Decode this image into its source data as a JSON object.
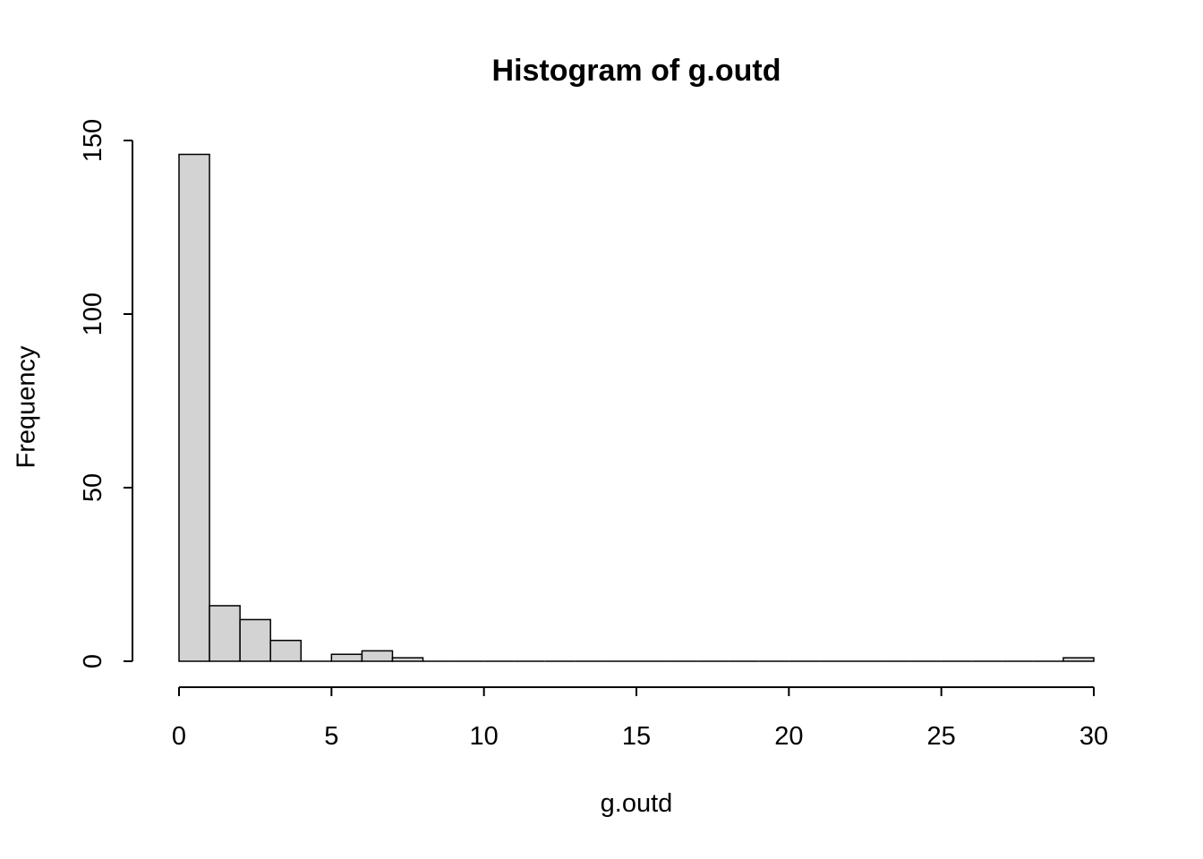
{
  "chart_data": {
    "type": "bar",
    "subtype": "histogram",
    "title": "Histogram of g.outd",
    "xlabel": "g.outd",
    "ylabel": "Frequency",
    "xlim": [
      0,
      30
    ],
    "ylim": [
      0,
      150
    ],
    "x_ticks": [
      0,
      5,
      10,
      15,
      20,
      25,
      30
    ],
    "y_ticks": [
      0,
      50,
      100,
      150
    ],
    "grid": false,
    "legend": false,
    "bar_fill": "#d3d3d3",
    "bar_stroke": "#000000",
    "bins": [
      {
        "start": 0,
        "end": 1,
        "count": 146
      },
      {
        "start": 1,
        "end": 2,
        "count": 16
      },
      {
        "start": 2,
        "end": 3,
        "count": 12
      },
      {
        "start": 3,
        "end": 4,
        "count": 6
      },
      {
        "start": 4,
        "end": 5,
        "count": 0
      },
      {
        "start": 5,
        "end": 6,
        "count": 2
      },
      {
        "start": 6,
        "end": 7,
        "count": 3
      },
      {
        "start": 7,
        "end": 8,
        "count": 1
      },
      {
        "start": 8,
        "end": 9,
        "count": 0
      },
      {
        "start": 9,
        "end": 10,
        "count": 0
      },
      {
        "start": 10,
        "end": 11,
        "count": 0
      },
      {
        "start": 11,
        "end": 12,
        "count": 0
      },
      {
        "start": 12,
        "end": 13,
        "count": 0
      },
      {
        "start": 13,
        "end": 14,
        "count": 0
      },
      {
        "start": 14,
        "end": 15,
        "count": 0
      },
      {
        "start": 15,
        "end": 16,
        "count": 0
      },
      {
        "start": 16,
        "end": 17,
        "count": 0
      },
      {
        "start": 17,
        "end": 18,
        "count": 0
      },
      {
        "start": 18,
        "end": 19,
        "count": 0
      },
      {
        "start": 19,
        "end": 20,
        "count": 0
      },
      {
        "start": 20,
        "end": 21,
        "count": 0
      },
      {
        "start": 21,
        "end": 22,
        "count": 0
      },
      {
        "start": 22,
        "end": 23,
        "count": 0
      },
      {
        "start": 23,
        "end": 24,
        "count": 0
      },
      {
        "start": 24,
        "end": 25,
        "count": 0
      },
      {
        "start": 25,
        "end": 26,
        "count": 0
      },
      {
        "start": 26,
        "end": 27,
        "count": 0
      },
      {
        "start": 27,
        "end": 28,
        "count": 0
      },
      {
        "start": 28,
        "end": 29,
        "count": 0
      },
      {
        "start": 29,
        "end": 30,
        "count": 1
      }
    ]
  }
}
